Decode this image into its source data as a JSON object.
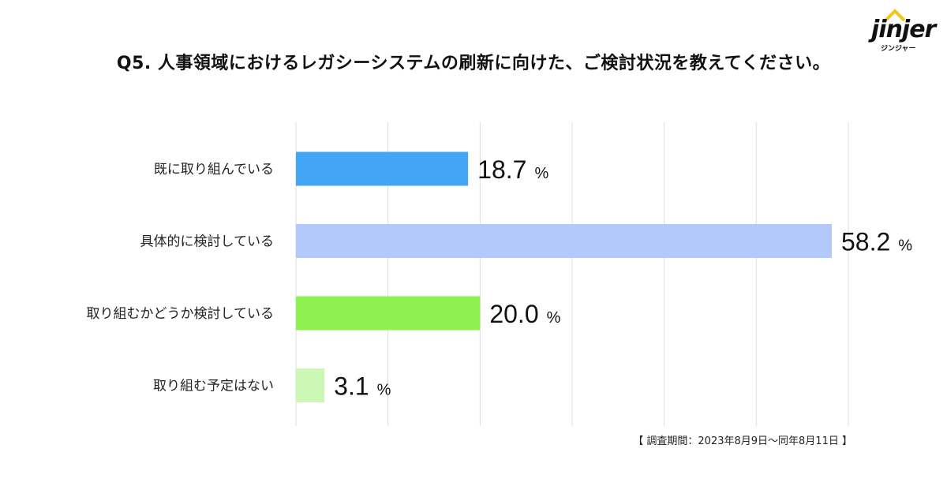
{
  "header": {
    "title": "Q5. 人事領域におけるレガシーシステムの刷新に向けた、ご検討状況を教えてください。",
    "logo_text": "jinjer",
    "logo_subtext": "ジンジャー"
  },
  "footer": {
    "source_note": "【 調査期間：2023年8月9日〜同年8月11日 】"
  },
  "chart_data": {
    "type": "bar",
    "orientation": "horizontal",
    "title": "Q5. 人事領域におけるレガシーシステムの刷新に向けた、ご検討状況を教えてください。",
    "categories": [
      "既に取り組んでいる",
      "具体的に検討している",
      "取り組むかどうか検討している",
      "取り組む予定はない"
    ],
    "values": [
      18.7,
      58.2,
      20.0,
      3.1
    ],
    "value_labels": [
      "18.7",
      "58.2",
      "20.0",
      "3.1"
    ],
    "unit": "%",
    "colors": [
      "#42a5f5",
      "#b3c9fb",
      "#8df04e",
      "#cdf7b4"
    ],
    "xlim": [
      0,
      60
    ],
    "grid": true,
    "xlabel": "",
    "ylabel": ""
  }
}
